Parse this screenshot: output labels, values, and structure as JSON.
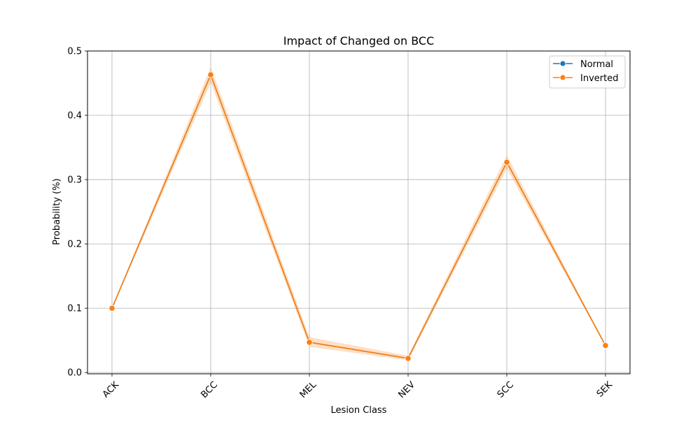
{
  "chart_data": {
    "type": "line",
    "title": "Impact of Changed on BCC",
    "xlabel": "Lesion Class",
    "ylabel": "Probability (%)",
    "categories": [
      "ACK",
      "BCC",
      "MEL",
      "NEV",
      "SCC",
      "SEK"
    ],
    "ylim": [
      -0.002,
      0.5
    ],
    "yticks": [
      0.0,
      0.1,
      0.2,
      0.3,
      0.4,
      0.5
    ],
    "ytick_labels": [
      "0.0",
      "0.1",
      "0.2",
      "0.3",
      "0.4",
      "0.5"
    ],
    "grid": true,
    "legend_position": "top-right",
    "series": [
      {
        "name": "Normal",
        "color": "#1f77b4",
        "values": [
          0.1,
          0.463,
          0.047,
          0.022,
          0.327,
          0.042
        ],
        "ci_lower": [
          0.1,
          0.463,
          0.047,
          0.022,
          0.327,
          0.042
        ],
        "ci_upper": [
          0.1,
          0.463,
          0.047,
          0.022,
          0.327,
          0.042
        ]
      },
      {
        "name": "Inverted",
        "color": "#ff7f0e",
        "values": [
          0.1,
          0.463,
          0.047,
          0.022,
          0.327,
          0.042
        ],
        "ci_lower": [
          0.099,
          0.451,
          0.04,
          0.019,
          0.317,
          0.041
        ],
        "ci_upper": [
          0.101,
          0.475,
          0.055,
          0.026,
          0.338,
          0.043
        ]
      }
    ]
  }
}
